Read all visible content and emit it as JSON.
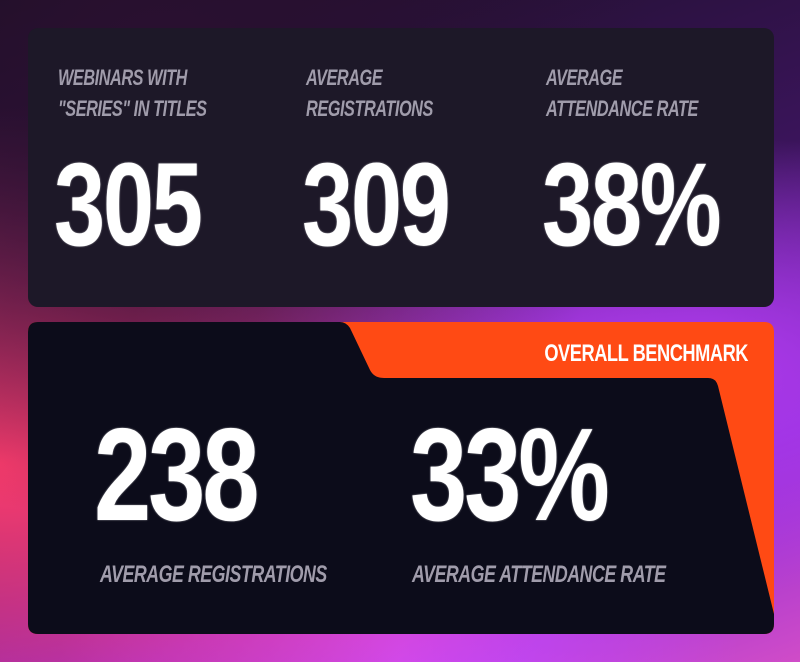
{
  "top_stats": [
    {
      "label_line1": "WEBINARS WITH",
      "label_line2": "\"SERIES\" IN TITLES",
      "value": "305"
    },
    {
      "label_line1": "AVERAGE",
      "label_line2": "REGISTRATIONS",
      "value": "309"
    },
    {
      "label_line1": "AVERAGE",
      "label_line2": "ATTENDANCE RATE",
      "value": "38%"
    }
  ],
  "benchmark": {
    "title": "OVERALL BENCHMARK",
    "stats": [
      {
        "value": "238",
        "label": "AVERAGE REGISTRATIONS"
      },
      {
        "value": "33%",
        "label": "AVERAGE ATTENDANCE RATE"
      }
    ]
  },
  "colors": {
    "panel_dark": "#1d1828",
    "panel_black": "#0c0c1a",
    "accent_orange": "#ff4a14",
    "label_gray": "#a09cab",
    "value_white": "#ffffff"
  }
}
